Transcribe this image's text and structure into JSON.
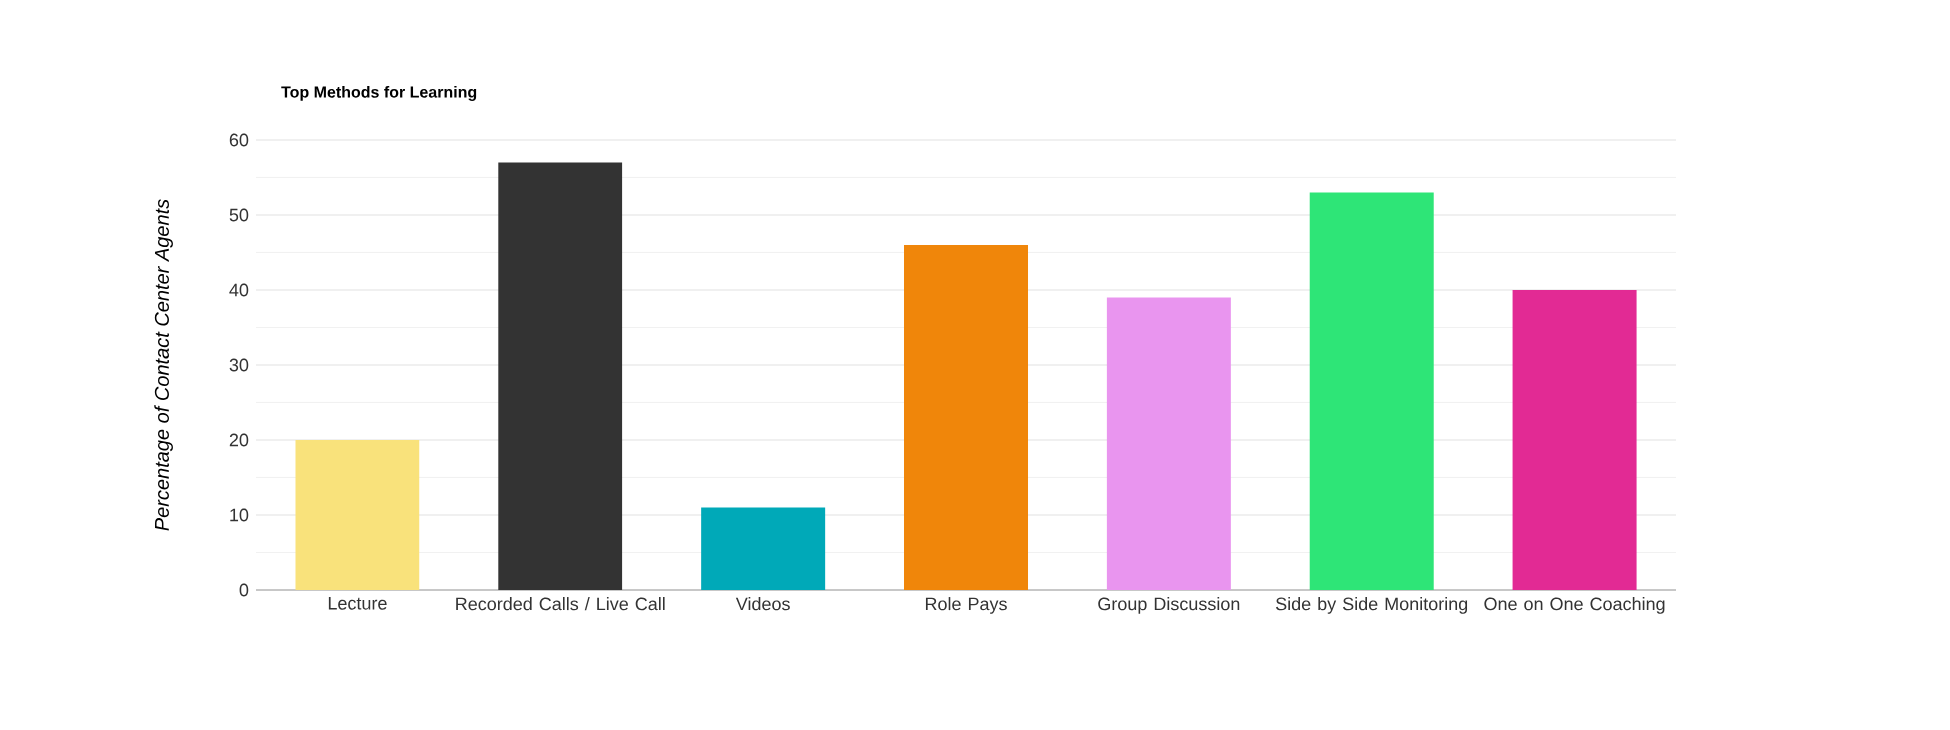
{
  "chart_data": {
    "type": "bar",
    "title": "Top Methods for Learning",
    "ylabel": "Percentage of Contact Center Agents",
    "categories": [
      "Lecture",
      "Recorded Calls / Live Call",
      "Videos",
      "Role Pays",
      "Group Discussion",
      "Side by Side Monitoring",
      "One on One Coaching"
    ],
    "values": [
      20,
      57,
      11,
      46,
      39,
      53,
      40
    ],
    "colors": [
      "#f9e27b",
      "#333333",
      "#00a9b8",
      "#f0860a",
      "#e995ef",
      "#2ee577",
      "#e22a94"
    ],
    "ylim": [
      0,
      60
    ],
    "yticks": [
      0,
      10,
      20,
      30,
      40,
      50,
      60
    ],
    "grid": true
  }
}
